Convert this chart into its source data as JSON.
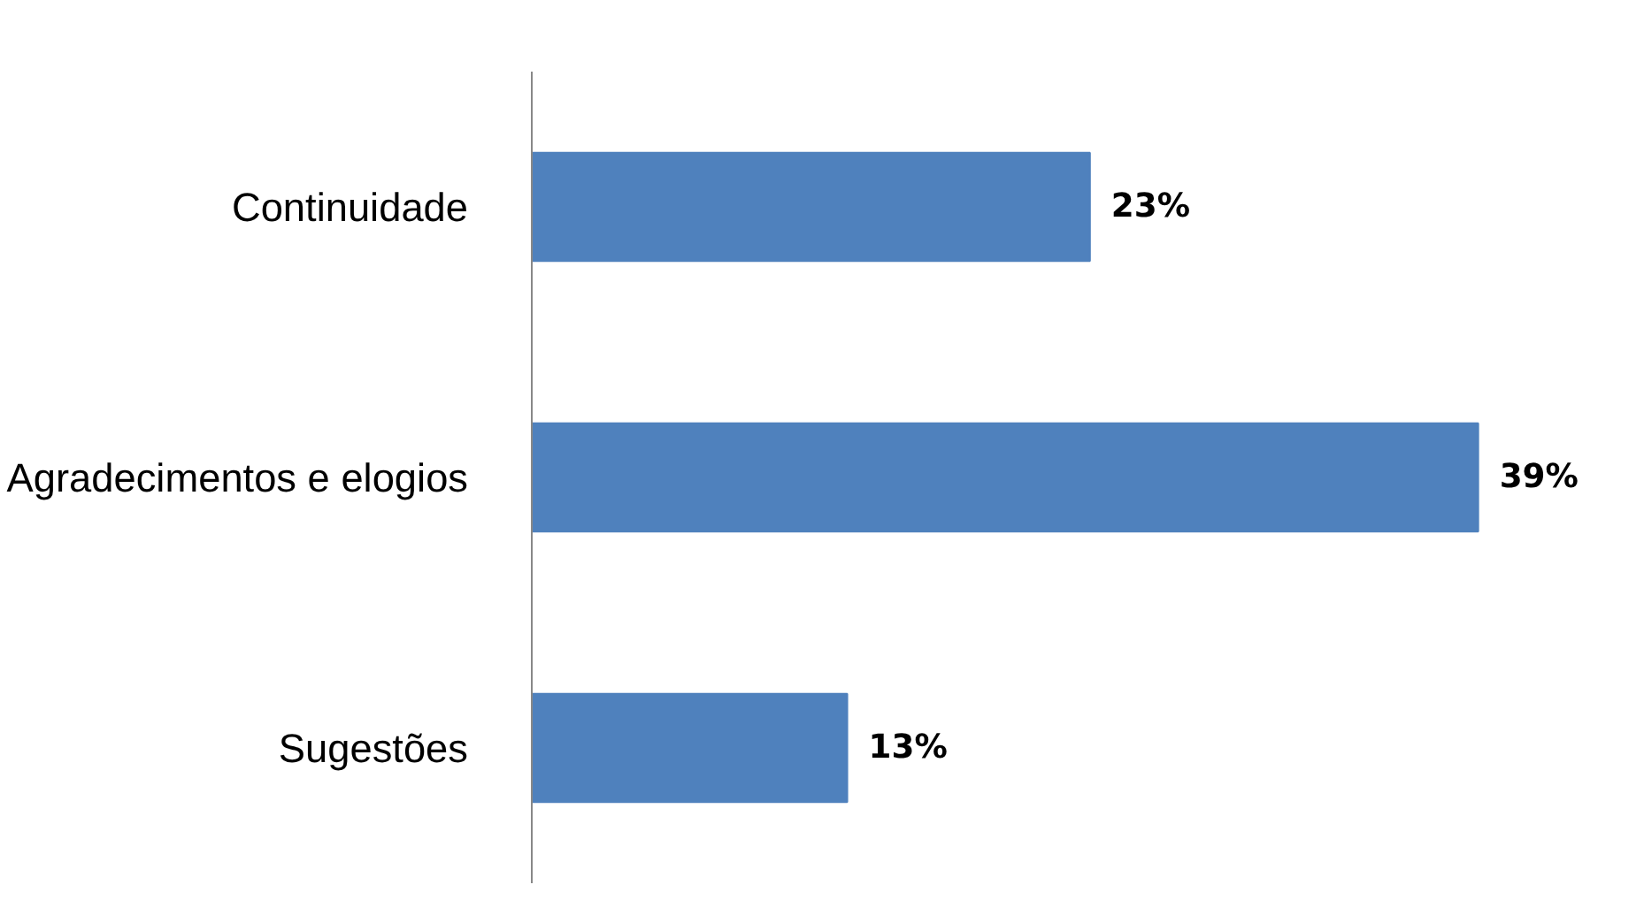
{
  "chart_data": {
    "type": "bar",
    "orientation": "horizontal",
    "categories": [
      "Continuidade",
      "Agradecimentos e elogios",
      "Sugestões"
    ],
    "values": [
      23,
      39,
      13
    ],
    "value_labels": [
      "23%",
      "39%",
      "13%"
    ],
    "color": "#4f81bd",
    "grid": false
  }
}
